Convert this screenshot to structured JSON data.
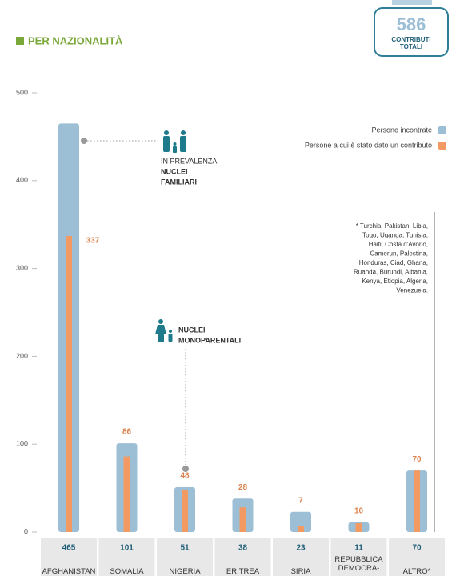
{
  "chart_data": {
    "type": "bar",
    "title": "PER NAZIONALITÀ",
    "total": 586,
    "total_label": [
      "CONTRIBUTI",
      "TOTALI"
    ],
    "categories": [
      "AFGHANISTAN",
      "SOMALIA",
      "NIGERIA",
      "ERITREA",
      "SIRIA",
      "REPUBBLICA DEMOCRA-",
      "ALTRO*"
    ],
    "series": [
      {
        "name": "Persone incontrate",
        "color": "#9dbfd6",
        "values": [
          465,
          101,
          51,
          38,
          23,
          11,
          70
        ]
      },
      {
        "name": "Persone a cui è stato dato un contributo",
        "color": "#f39a63",
        "values": [
          337,
          86,
          48,
          28,
          7,
          10,
          70
        ]
      }
    ],
    "ylim": [
      0,
      500
    ],
    "yticks": [
      0,
      100,
      200,
      300,
      400,
      500
    ],
    "annotations": [
      {
        "lines": [
          "IN PREVALENZA",
          "NUCLEI",
          "FAMILIARI"
        ]
      },
      {
        "lines": [
          "NUCLEI",
          "MONOPARENTALI"
        ]
      }
    ],
    "footnote": [
      "* Turchia, Pakistan, Libia,",
      "Togo, Uganda, Tunisia,",
      "Haiti, Costa d'Avorio,",
      "Camerun, Palestina,",
      "Honduras, Ciad, Ghana,",
      "Ruanda, Burundi, Albania,",
      "Kenya, Etiopia, Algeria,",
      "Venezuela."
    ]
  }
}
